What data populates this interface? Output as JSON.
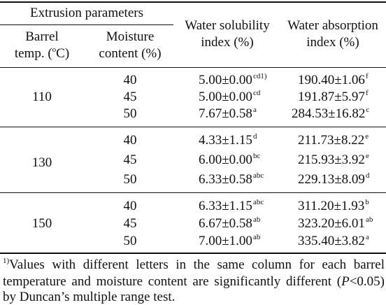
{
  "header": {
    "group": "Extrusion parameters",
    "barrel_line1": "Barrel",
    "barrel_line2_pre": "temp. (",
    "barrel_deg": "o",
    "barrel_line2_post": "C)",
    "moisture_line1": "Moisture",
    "moisture_line2": "content (%)",
    "wsi_line1": "Water solubility",
    "wsi_line2": "index (%)",
    "wai_line1": "Water absorption",
    "wai_line2": "index (%)"
  },
  "groups": [
    {
      "temp": "110",
      "rows": [
        {
          "moisture": "40",
          "wsi": "5.00±0.00",
          "wsi_sup": "cd1)",
          "wai": "190.40±1.06",
          "wai_sup": "f"
        },
        {
          "moisture": "45",
          "wsi": "5.00±0.00",
          "wsi_sup": "cd",
          "wai": "191.87±5.97",
          "wai_sup": "f"
        },
        {
          "moisture": "50",
          "wsi": "7.67±0.58",
          "wsi_sup": "a",
          "wai": "284.53±16.82",
          "wai_sup": "c"
        }
      ]
    },
    {
      "temp": "130",
      "rows": [
        {
          "moisture": "40",
          "wsi": "4.33±1.15",
          "wsi_sup": "d",
          "wai": "211.73±8.22",
          "wai_sup": "e"
        },
        {
          "moisture": "45",
          "wsi": "6.00±0.00",
          "wsi_sup": "bc",
          "wai": "215.93±3.92",
          "wai_sup": "e"
        },
        {
          "moisture": "50",
          "wsi": "6.33±0.58",
          "wsi_sup": "abc",
          "wai": "229.13±8.09",
          "wai_sup": "d"
        }
      ]
    },
    {
      "temp": "150",
      "rows": [
        {
          "moisture": "40",
          "wsi": "6.33±1.15",
          "wsi_sup": "abc",
          "wai": "311.20±1.93",
          "wai_sup": "b"
        },
        {
          "moisture": "45",
          "wsi": "6.67±0.58",
          "wsi_sup": "ab",
          "wai": "323.20±6.01",
          "wai_sup": "ab"
        },
        {
          "moisture": "50",
          "wsi": "7.00±1.00",
          "wsi_sup": "ab",
          "wai": "335.40±3.82",
          "wai_sup": "a"
        }
      ]
    }
  ],
  "footnote": {
    "marker": "1)",
    "text_a": "Values with different letters in the same column for each barrel temperature and moisture content are significantly different (",
    "p_italic": "P",
    "text_b": "<0.05) by Duncan’s multiple range test."
  }
}
